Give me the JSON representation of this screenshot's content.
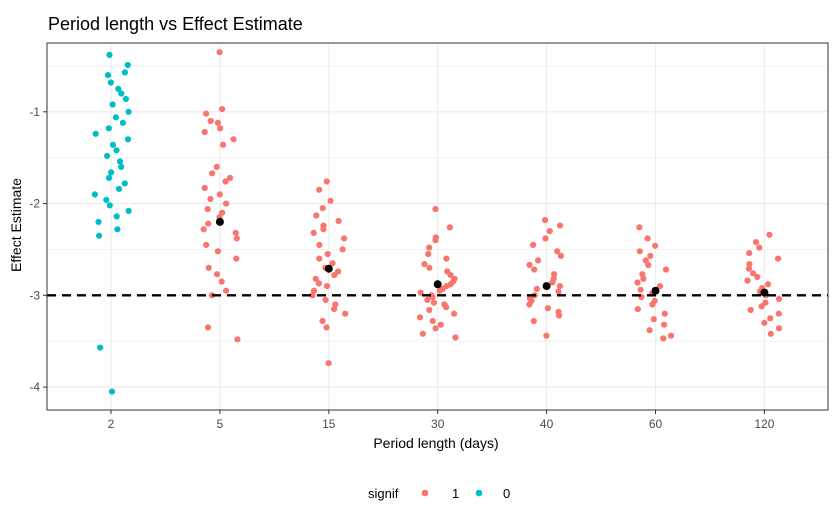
{
  "chart_data": {
    "type": "scatter",
    "title": "Period length vs Effect Estimate",
    "xlabel": "Period length (days)",
    "ylabel": "Effect Estimate",
    "categories": [
      "2",
      "5",
      "15",
      "30",
      "40",
      "60",
      "120"
    ],
    "ylim": [
      -4.25,
      -0.25
    ],
    "yticks": [
      -1,
      -2,
      -3,
      -4
    ],
    "grid": true,
    "reference_line": {
      "y": -3,
      "style": "dashed",
      "color": "#000000"
    },
    "legend": {
      "title": "signif",
      "position": "bottom",
      "entries": [
        {
          "label": "1",
          "color": "#F8766D"
        },
        {
          "label": "0",
          "color": "#00BFC4"
        }
      ]
    },
    "series": [
      {
        "name": "1",
        "color": "#F8766D",
        "points": [
          [
            "5",
            -0.35
          ],
          [
            "5",
            -0.97
          ],
          [
            "5",
            -1.02
          ],
          [
            "5",
            -1.1
          ],
          [
            "5",
            -1.12
          ],
          [
            "5",
            -1.18
          ],
          [
            "5",
            -1.22
          ],
          [
            "5",
            -1.3
          ],
          [
            "5",
            -1.36
          ],
          [
            "5",
            -1.6
          ],
          [
            "5",
            -1.67
          ],
          [
            "5",
            -1.72
          ],
          [
            "5",
            -1.76
          ],
          [
            "5",
            -1.83
          ],
          [
            "5",
            -1.9
          ],
          [
            "5",
            -1.95
          ],
          [
            "5",
            -2.0
          ],
          [
            "5",
            -2.06
          ],
          [
            "5",
            -2.1
          ],
          [
            "5",
            -2.15
          ],
          [
            "5",
            -2.22
          ],
          [
            "5",
            -2.28
          ],
          [
            "5",
            -2.32
          ],
          [
            "5",
            -2.38
          ],
          [
            "5",
            -2.45
          ],
          [
            "5",
            -2.52
          ],
          [
            "5",
            -2.6
          ],
          [
            "5",
            -2.7
          ],
          [
            "5",
            -2.77
          ],
          [
            "5",
            -2.85
          ],
          [
            "5",
            -2.95
          ],
          [
            "5",
            -3.0
          ],
          [
            "5",
            -3.35
          ],
          [
            "5",
            -3.48
          ],
          [
            "15",
            -1.76
          ],
          [
            "15",
            -1.85
          ],
          [
            "15",
            -1.97
          ],
          [
            "15",
            -2.05
          ],
          [
            "15",
            -2.13
          ],
          [
            "15",
            -2.19
          ],
          [
            "15",
            -2.24
          ],
          [
            "15",
            -2.28
          ],
          [
            "15",
            -2.32
          ],
          [
            "15",
            -2.38
          ],
          [
            "15",
            -2.45
          ],
          [
            "15",
            -2.5
          ],
          [
            "15",
            -2.55
          ],
          [
            "15",
            -2.6
          ],
          [
            "15",
            -2.65
          ],
          [
            "15",
            -2.7
          ],
          [
            "15",
            -2.74
          ],
          [
            "15",
            -2.78
          ],
          [
            "15",
            -2.82
          ],
          [
            "15",
            -2.87
          ],
          [
            "15",
            -2.9
          ],
          [
            "15",
            -2.95
          ],
          [
            "15",
            -3.0
          ],
          [
            "15",
            -3.05
          ],
          [
            "15",
            -3.1
          ],
          [
            "15",
            -3.15
          ],
          [
            "15",
            -3.2
          ],
          [
            "15",
            -3.28
          ],
          [
            "15",
            -3.35
          ],
          [
            "15",
            -3.74
          ],
          [
            "30",
            -2.06
          ],
          [
            "30",
            -2.26
          ],
          [
            "30",
            -2.37
          ],
          [
            "30",
            -2.4
          ],
          [
            "30",
            -2.48
          ],
          [
            "30",
            -2.55
          ],
          [
            "30",
            -2.6
          ],
          [
            "30",
            -2.66
          ],
          [
            "30",
            -2.7
          ],
          [
            "30",
            -2.74
          ],
          [
            "30",
            -2.78
          ],
          [
            "30",
            -2.82
          ],
          [
            "30",
            -2.85
          ],
          [
            "30",
            -2.88
          ],
          [
            "30",
            -2.9
          ],
          [
            "30",
            -2.93
          ],
          [
            "30",
            -2.95
          ],
          [
            "30",
            -2.97
          ],
          [
            "30",
            -3.0
          ],
          [
            "30",
            -3.02
          ],
          [
            "30",
            -3.05
          ],
          [
            "30",
            -3.08
          ],
          [
            "30",
            -3.1
          ],
          [
            "30",
            -3.13
          ],
          [
            "30",
            -3.16
          ],
          [
            "30",
            -3.2
          ],
          [
            "30",
            -3.24
          ],
          [
            "30",
            -3.28
          ],
          [
            "30",
            -3.32
          ],
          [
            "30",
            -3.36
          ],
          [
            "30",
            -3.42
          ],
          [
            "30",
            -3.46
          ],
          [
            "40",
            -2.18
          ],
          [
            "40",
            -2.24
          ],
          [
            "40",
            -2.3
          ],
          [
            "40",
            -2.38
          ],
          [
            "40",
            -2.45
          ],
          [
            "40",
            -2.52
          ],
          [
            "40",
            -2.57
          ],
          [
            "40",
            -2.62
          ],
          [
            "40",
            -2.67
          ],
          [
            "40",
            -2.72
          ],
          [
            "40",
            -2.77
          ],
          [
            "40",
            -2.82
          ],
          [
            "40",
            -2.86
          ],
          [
            "40",
            -2.9
          ],
          [
            "40",
            -2.93
          ],
          [
            "40",
            -2.96
          ],
          [
            "40",
            -3.0
          ],
          [
            "40",
            -3.03
          ],
          [
            "40",
            -3.06
          ],
          [
            "40",
            -3.1
          ],
          [
            "40",
            -3.14
          ],
          [
            "40",
            -3.18
          ],
          [
            "40",
            -3.22
          ],
          [
            "40",
            -3.28
          ],
          [
            "40",
            -3.44
          ],
          [
            "60",
            -2.26
          ],
          [
            "60",
            -2.38
          ],
          [
            "60",
            -2.46
          ],
          [
            "60",
            -2.52
          ],
          [
            "60",
            -2.57
          ],
          [
            "60",
            -2.62
          ],
          [
            "60",
            -2.67
          ],
          [
            "60",
            -2.72
          ],
          [
            "60",
            -2.77
          ],
          [
            "60",
            -2.82
          ],
          [
            "60",
            -2.86
          ],
          [
            "60",
            -2.9
          ],
          [
            "60",
            -2.94
          ],
          [
            "60",
            -2.98
          ],
          [
            "60",
            -3.02
          ],
          [
            "60",
            -3.06
          ],
          [
            "60",
            -3.1
          ],
          [
            "60",
            -3.15
          ],
          [
            "60",
            -3.2
          ],
          [
            "60",
            -3.26
          ],
          [
            "60",
            -3.32
          ],
          [
            "60",
            -3.38
          ],
          [
            "60",
            -3.44
          ],
          [
            "60",
            -3.47
          ],
          [
            "120",
            -2.34
          ],
          [
            "120",
            -2.42
          ],
          [
            "120",
            -2.48
          ],
          [
            "120",
            -2.54
          ],
          [
            "120",
            -2.6
          ],
          [
            "120",
            -2.66
          ],
          [
            "120",
            -2.71
          ],
          [
            "120",
            -2.76
          ],
          [
            "120",
            -2.8
          ],
          [
            "120",
            -2.84
          ],
          [
            "120",
            -2.88
          ],
          [
            "120",
            -2.92
          ],
          [
            "120",
            -2.96
          ],
          [
            "120",
            -3.0
          ],
          [
            "120",
            -3.04
          ],
          [
            "120",
            -3.08
          ],
          [
            "120",
            -3.12
          ],
          [
            "120",
            -3.16
          ],
          [
            "120",
            -3.2
          ],
          [
            "120",
            -3.25
          ],
          [
            "120",
            -3.3
          ],
          [
            "120",
            -3.36
          ],
          [
            "120",
            -3.42
          ]
        ]
      },
      {
        "name": "0",
        "color": "#00BFC4",
        "points": [
          [
            "2",
            -0.38
          ],
          [
            "2",
            -0.49
          ],
          [
            "2",
            -0.57
          ],
          [
            "2",
            -0.6
          ],
          [
            "2",
            -0.68
          ],
          [
            "2",
            -0.75
          ],
          [
            "2",
            -0.8
          ],
          [
            "2",
            -0.86
          ],
          [
            "2",
            -0.92
          ],
          [
            "2",
            -1.0
          ],
          [
            "2",
            -1.06
          ],
          [
            "2",
            -1.12
          ],
          [
            "2",
            -1.18
          ],
          [
            "2",
            -1.24
          ],
          [
            "2",
            -1.3
          ],
          [
            "2",
            -1.36
          ],
          [
            "2",
            -1.42
          ],
          [
            "2",
            -1.48
          ],
          [
            "2",
            -1.54
          ],
          [
            "2",
            -1.6
          ],
          [
            "2",
            -1.66
          ],
          [
            "2",
            -1.72
          ],
          [
            "2",
            -1.78
          ],
          [
            "2",
            -1.84
          ],
          [
            "2",
            -1.9
          ],
          [
            "2",
            -1.96
          ],
          [
            "2",
            -2.02
          ],
          [
            "2",
            -2.08
          ],
          [
            "2",
            -2.14
          ],
          [
            "2",
            -2.2
          ],
          [
            "2",
            -2.28
          ],
          [
            "2",
            -2.35
          ],
          [
            "2",
            -3.57
          ],
          [
            "2",
            -4.05
          ]
        ]
      }
    ],
    "means": {
      "color": "#000000",
      "points": [
        [
          "5",
          -2.2
        ],
        [
          "15",
          -2.71
        ],
        [
          "30",
          -2.88
        ],
        [
          "40",
          -2.9
        ],
        [
          "60",
          -2.95
        ],
        [
          "120",
          -2.97
        ]
      ]
    }
  }
}
